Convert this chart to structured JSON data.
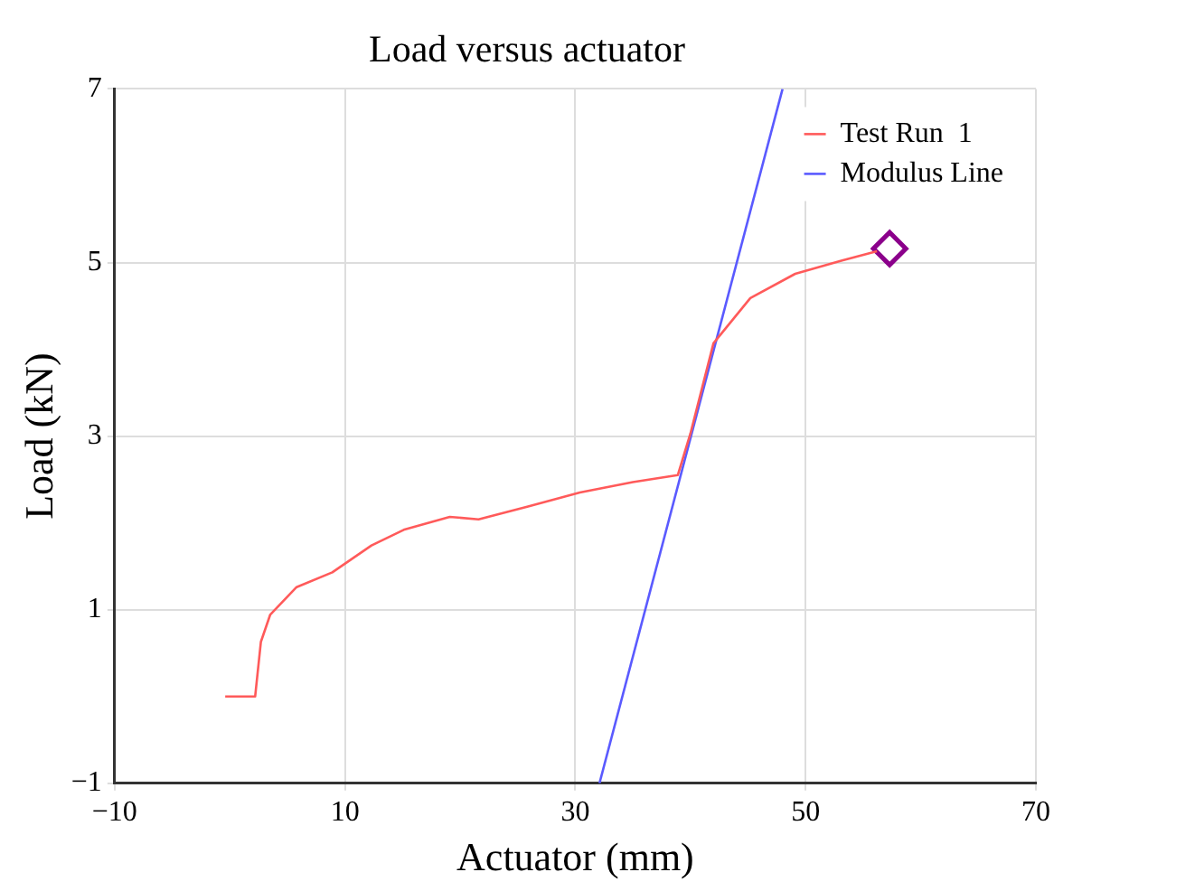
{
  "chart_data": {
    "type": "line",
    "title": "Load versus actuator",
    "xlabel": "Actuator (mm)",
    "ylabel": "Load (kN)",
    "xlim": [
      -10,
      70
    ],
    "xticks": [
      {
        "value": -10,
        "label": "−10"
      },
      10,
      30,
      50,
      70
    ],
    "ylim": [
      -1,
      7
    ],
    "yticks": [
      {
        "value": -1,
        "label": "−1"
      },
      1,
      3,
      5,
      7
    ],
    "grid": true,
    "legend": "top right",
    "marker": "none",
    "line_style": "solid",
    "series": [
      {
        "name": "Test Run  1",
        "color": "#ff5a5a",
        "x": [
          -0.4,
          2.2,
          2.7,
          3.5,
          5.8,
          8.9,
          12.3,
          15.1,
          19.1,
          21.6,
          25.9,
          30.4,
          35.0,
          38.9,
          40.0,
          42.0,
          45.2,
          49.1,
          53.1,
          56.2
        ],
        "values": [
          0.0,
          0.0,
          0.63,
          0.94,
          1.26,
          1.43,
          1.74,
          1.92,
          2.07,
          2.04,
          2.19,
          2.35,
          2.47,
          2.55,
          3.03,
          4.07,
          4.59,
          4.87,
          5.02,
          5.13
        ]
      },
      {
        "name": "Modulus Line",
        "color": "#5a5aff",
        "x": [
          32.1,
          48.0
        ],
        "values": [
          -1,
          7
        ]
      },
      {
        "type": "scatter",
        "marker": "diamond",
        "color": "#8b008b",
        "x": [
          57.3
        ],
        "values": [
          5.16
        ]
      }
    ]
  }
}
